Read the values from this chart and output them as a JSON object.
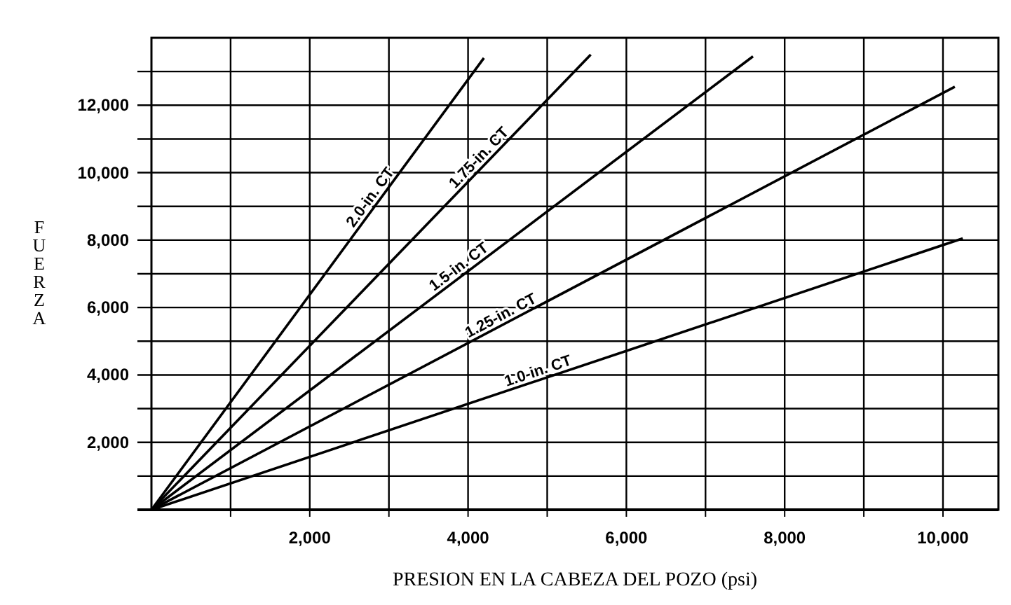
{
  "chart_data": {
    "type": "line",
    "xlabel": "PRESION EN LA CABEZA DEL POZO  (psi)",
    "ylabel": "FUERZA",
    "xlim": [
      0,
      10700
    ],
    "ylim": [
      0,
      14000
    ],
    "xticks": [
      {
        "value": 1000,
        "label": null
      },
      {
        "value": 2000,
        "label": "2,000"
      },
      {
        "value": 3000,
        "label": null
      },
      {
        "value": 4000,
        "label": "4,000"
      },
      {
        "value": 5000,
        "label": null
      },
      {
        "value": 6000,
        "label": "6,000"
      },
      {
        "value": 7000,
        "label": null
      },
      {
        "value": 8000,
        "label": "8,000"
      },
      {
        "value": 9000,
        "label": null
      },
      {
        "value": 10000,
        "label": "10,000"
      }
    ],
    "yticks": [
      {
        "value": 1000,
        "label": null
      },
      {
        "value": 2000,
        "label": "2,000"
      },
      {
        "value": 3000,
        "label": null
      },
      {
        "value": 4000,
        "label": "4,000"
      },
      {
        "value": 5000,
        "label": null
      },
      {
        "value": 6000,
        "label": "6,000"
      },
      {
        "value": 7000,
        "label": null
      },
      {
        "value": 8000,
        "label": "8,000"
      },
      {
        "value": 9000,
        "label": null
      },
      {
        "value": 10000,
        "label": "10,000"
      },
      {
        "value": 11000,
        "label": null
      },
      {
        "value": 12000,
        "label": "12,000"
      },
      {
        "value": 13000,
        "label": null
      }
    ],
    "grid": true,
    "marker": "none",
    "line_style": "solid",
    "series": [
      {
        "name": "2.0-in. CT",
        "color": "#000000",
        "x": [
          0,
          4200
        ],
        "values": [
          0,
          13400
        ]
      },
      {
        "name": "1.75-in. CT",
        "color": "#000000",
        "x": [
          0,
          5550
        ],
        "values": [
          0,
          13500
        ]
      },
      {
        "name": "1.5-in. CT",
        "color": "#000000",
        "x": [
          0,
          7600
        ],
        "values": [
          0,
          13450
        ]
      },
      {
        "name": "1.25-in. CT",
        "color": "#000000",
        "x": [
          0,
          10150
        ],
        "values": [
          0,
          12550
        ]
      },
      {
        "name": "1.0-in. CT",
        "color": "#000000",
        "x": [
          0,
          10250
        ],
        "values": [
          0,
          8050
        ]
      }
    ]
  }
}
